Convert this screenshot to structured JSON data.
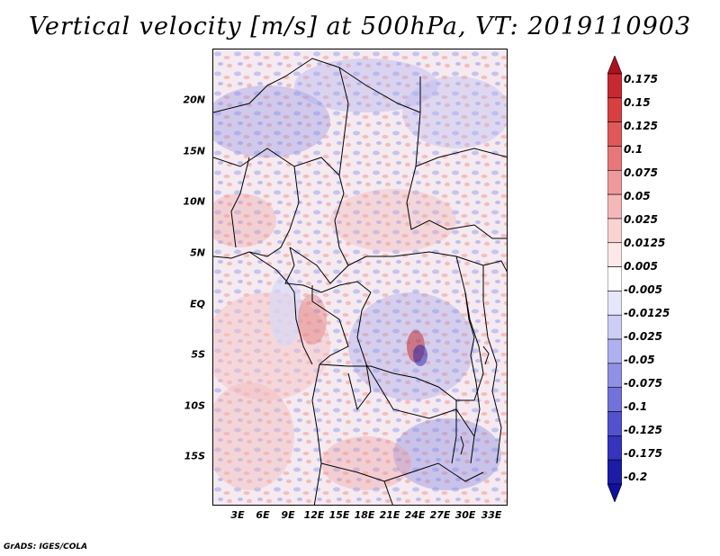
{
  "title": "Vertical velocity [m/s] at 500hPa, VT: 2019110903",
  "credit": "GrADS: IGES/COLA",
  "map": {
    "lat_labels": [
      "20N",
      "15N",
      "10N",
      "5N",
      "EQ",
      "5S",
      "10S",
      "15S"
    ],
    "lon_labels": [
      "3E",
      "6E",
      "9E",
      "12E",
      "15E",
      "18E",
      "21E",
      "24E",
      "27E",
      "30E",
      "33E"
    ]
  },
  "colorbar": {
    "labels": [
      "0.175",
      "0.15",
      "0.125",
      "0.1",
      "0.075",
      "0.05",
      "0.025",
      "0.0125",
      "0.005",
      "-0.005",
      "-0.0125",
      "-0.025",
      "-0.05",
      "-0.075",
      "-0.1",
      "-0.125",
      "-0.175",
      "-0.2"
    ],
    "colors": [
      "#b01020",
      "#c82830",
      "#d84040",
      "#e05858",
      "#e87878",
      "#ef9a9a",
      "#f5b8b8",
      "#f9d2d2",
      "#fce8e8",
      "#ffffff",
      "#e6e6fb",
      "#cdcdf6",
      "#b0b0f0",
      "#9090e6",
      "#7272dd",
      "#5252cf",
      "#3434bd",
      "#1c1ca8",
      "#10109a"
    ]
  }
}
